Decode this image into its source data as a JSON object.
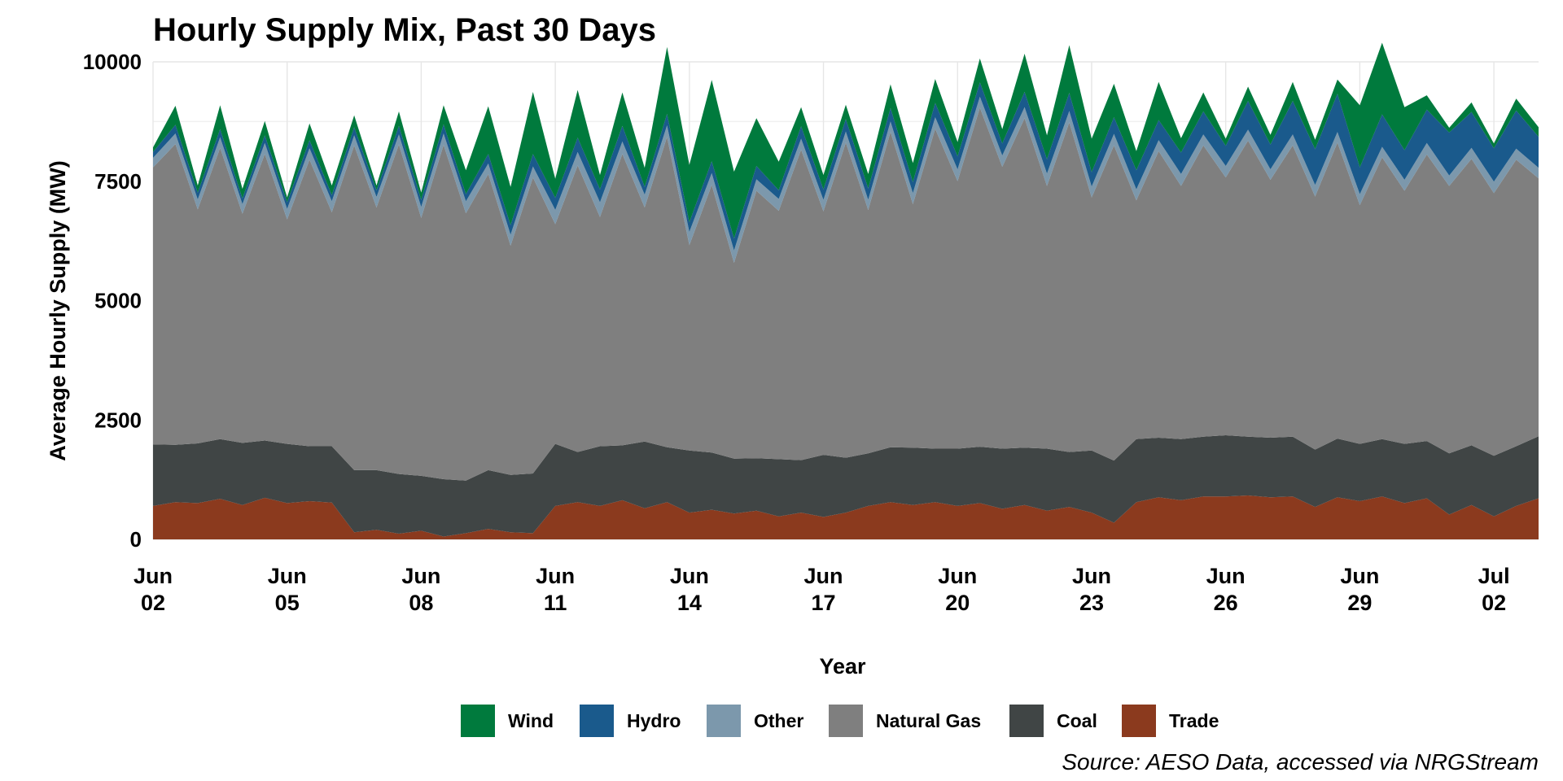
{
  "chart_data": {
    "type": "area",
    "stacked": true,
    "title": "Hourly Supply Mix, Past 30 Days",
    "xlabel": "Year",
    "ylabel": "Average Hourly Supply (MW)",
    "source": "Source: AESO Data, accessed via NRGStream",
    "ylim": [
      0,
      10000
    ],
    "xlim_days": [
      "2023-06-02",
      "2023-07-03"
    ],
    "y_ticks": [
      0,
      2500,
      5000,
      7500,
      10000
    ],
    "x_ticks": [
      {
        "date": "2023-06-02",
        "line1": "Jun",
        "line2": "02"
      },
      {
        "date": "2023-06-05",
        "line1": "Jun",
        "line2": "05"
      },
      {
        "date": "2023-06-08",
        "line1": "Jun",
        "line2": "08"
      },
      {
        "date": "2023-06-11",
        "line1": "Jun",
        "line2": "11"
      },
      {
        "date": "2023-06-14",
        "line1": "Jun",
        "line2": "14"
      },
      {
        "date": "2023-06-17",
        "line1": "Jun",
        "line2": "17"
      },
      {
        "date": "2023-06-20",
        "line1": "Jun",
        "line2": "20"
      },
      {
        "date": "2023-06-23",
        "line1": "Jun",
        "line2": "23"
      },
      {
        "date": "2023-06-26",
        "line1": "Jun",
        "line2": "26"
      },
      {
        "date": "2023-06-29",
        "line1": "Jun",
        "line2": "29"
      },
      {
        "date": "2023-07-02",
        "line1": "Jul",
        "line2": "02"
      }
    ],
    "grid": true,
    "legend_position": "bottom",
    "x": [
      "2023-06-02 00:00",
      "2023-06-02 12:00",
      "2023-06-03 00:00",
      "2023-06-03 12:00",
      "2023-06-04 00:00",
      "2023-06-04 12:00",
      "2023-06-05 00:00",
      "2023-06-05 12:00",
      "2023-06-06 00:00",
      "2023-06-06 12:00",
      "2023-06-07 00:00",
      "2023-06-07 12:00",
      "2023-06-08 00:00",
      "2023-06-08 12:00",
      "2023-06-09 00:00",
      "2023-06-09 12:00",
      "2023-06-10 00:00",
      "2023-06-10 12:00",
      "2023-06-11 00:00",
      "2023-06-11 12:00",
      "2023-06-12 00:00",
      "2023-06-12 12:00",
      "2023-06-13 00:00",
      "2023-06-13 12:00",
      "2023-06-14 00:00",
      "2023-06-14 12:00",
      "2023-06-15 00:00",
      "2023-06-15 12:00",
      "2023-06-16 00:00",
      "2023-06-16 12:00",
      "2023-06-17 00:00",
      "2023-06-17 12:00",
      "2023-06-18 00:00",
      "2023-06-18 12:00",
      "2023-06-19 00:00",
      "2023-06-19 12:00",
      "2023-06-20 00:00",
      "2023-06-20 12:00",
      "2023-06-21 00:00",
      "2023-06-21 12:00",
      "2023-06-22 00:00",
      "2023-06-22 12:00",
      "2023-06-23 00:00",
      "2023-06-23 12:00",
      "2023-06-24 00:00",
      "2023-06-24 12:00",
      "2023-06-25 00:00",
      "2023-06-25 12:00",
      "2023-06-26 00:00",
      "2023-06-26 12:00",
      "2023-06-27 00:00",
      "2023-06-27 12:00",
      "2023-06-28 00:00",
      "2023-06-28 12:00",
      "2023-06-29 00:00",
      "2023-06-29 12:00",
      "2023-06-30 00:00",
      "2023-06-30 12:00",
      "2023-07-01 00:00",
      "2023-07-01 12:00",
      "2023-07-02 00:00",
      "2023-07-02 12:00",
      "2023-07-03 00:00"
    ],
    "series": [
      {
        "name": "Trade",
        "color": "#8B3A1E",
        "values": [
          700,
          780,
          760,
          850,
          720,
          870,
          760,
          800,
          770,
          150,
          200,
          120,
          180,
          60,
          130,
          220,
          150,
          130,
          700,
          780,
          700,
          820,
          650,
          780,
          560,
          620,
          540,
          600,
          480,
          560,
          470,
          560,
          700,
          780,
          720,
          780,
          700,
          760,
          640,
          720,
          600,
          680,
          560,
          350,
          780,
          880,
          820,
          900,
          900,
          920,
          880,
          900,
          680,
          880,
          800,
          900,
          760,
          860,
          520,
          720,
          480,
          700,
          860
        ]
      },
      {
        "name": "Coal",
        "color": "#404545",
        "values": [
          1290,
          1200,
          1250,
          1250,
          1300,
          1200,
          1240,
          1150,
          1180,
          1300,
          1250,
          1250,
          1150,
          1200,
          1100,
          1230,
          1200,
          1250,
          1300,
          1050,
          1250,
          1150,
          1400,
          1150,
          1300,
          1200,
          1150,
          1100,
          1200,
          1100,
          1300,
          1150,
          1100,
          1150,
          1200,
          1120,
          1200,
          1180,
          1260,
          1200,
          1300,
          1150,
          1300,
          1300,
          1320,
          1250,
          1280,
          1250,
          1280,
          1230,
          1250,
          1250,
          1200,
          1230,
          1200,
          1200,
          1240,
          1200,
          1280,
          1250,
          1270,
          1250,
          1300
        ]
      },
      {
        "name": "Natural Gas",
        "color": "#7F7F7F",
        "values": [
          5800,
          6300,
          4900,
          6100,
          4800,
          6000,
          4700,
          6000,
          4900,
          6800,
          5500,
          6900,
          5400,
          7000,
          5600,
          6200,
          4800,
          6200,
          4600,
          6000,
          4800,
          6100,
          4900,
          6500,
          4300,
          5600,
          4100,
          5600,
          5200,
          6500,
          5100,
          6600,
          5100,
          6600,
          5100,
          6700,
          5600,
          7100,
          5900,
          6900,
          5500,
          6900,
          5300,
          6600,
          5000,
          6000,
          5300,
          6100,
          5400,
          6200,
          5400,
          6100,
          5300,
          6200,
          5000,
          5900,
          5300,
          6000,
          5600,
          6000,
          5500,
          6000,
          5400
        ]
      },
      {
        "name": "Other",
        "color": "#7C98AC",
        "values": [
          200,
          220,
          210,
          220,
          200,
          230,
          220,
          240,
          230,
          210,
          220,
          210,
          230,
          240,
          250,
          220,
          230,
          230,
          300,
          280,
          310,
          260,
          270,
          240,
          280,
          250,
          260,
          240,
          250,
          230,
          240,
          230,
          210,
          220,
          230,
          240,
          250,
          230,
          240,
          230,
          260,
          240,
          230,
          240,
          230,
          230,
          250,
          230,
          240,
          230,
          220,
          230,
          240,
          220,
          230,
          220,
          230,
          240,
          220,
          230,
          240,
          230,
          220
        ]
      },
      {
        "name": "Hydro",
        "color": "#1A5A8C",
        "values": [
          120,
          180,
          140,
          170,
          120,
          160,
          140,
          170,
          130,
          170,
          140,
          180,
          150,
          190,
          150,
          200,
          200,
          260,
          250,
          300,
          270,
          330,
          160,
          240,
          200,
          250,
          250,
          280,
          180,
          260,
          220,
          260,
          240,
          280,
          230,
          300,
          270,
          300,
          250,
          320,
          300,
          380,
          300,
          350,
          400,
          420,
          450,
          480,
          420,
          600,
          520,
          700,
          750,
          800,
          560,
          680,
          620,
          700,
          900,
          750,
          700,
          800,
          650
        ]
      },
      {
        "name": "Wind",
        "color": "#007A3D",
        "values": [
          100,
          400,
          150,
          500,
          200,
          300,
          100,
          350,
          200,
          250,
          100,
          300,
          150,
          400,
          500,
          1000,
          800,
          1300,
          400,
          1000,
          300,
          700,
          400,
          1400,
          1200,
          1700,
          1400,
          1000,
          600,
          400,
          300,
          300,
          300,
          500,
          400,
          500,
          300,
          500,
          300,
          800,
          500,
          1000,
          700,
          700,
          400,
          800,
          300,
          400,
          150,
          300,
          200,
          400,
          200,
          300,
          1300,
          1500,
          900,
          300,
          100,
          200,
          100,
          250,
          200
        ]
      }
    ]
  }
}
